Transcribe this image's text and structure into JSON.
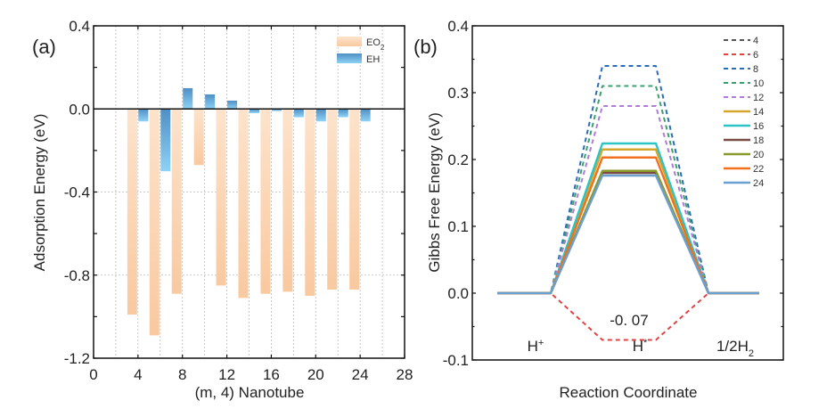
{
  "chart_data": [
    {
      "panel": "(a)",
      "type": "bar",
      "title": "",
      "xlabel": "(m, 4) Nanotube",
      "ylabel": "Adsorption Energy (eV)",
      "xlim": [
        0,
        28
      ],
      "ylim": [
        -1.2,
        0.4
      ],
      "xticks": [
        0,
        4,
        8,
        12,
        16,
        20,
        24,
        28
      ],
      "xtick_labels": [
        "0",
        "4",
        "8",
        "12",
        "16",
        "20",
        "24",
        "28"
      ],
      "yticks": [
        0.4,
        0.0,
        -0.4,
        -0.8,
        -1.2
      ],
      "ytick_labels": [
        "0.4",
        "0.0",
        "-0.4",
        "-0.8",
        "-1.2"
      ],
      "grid": true,
      "legend_position": "top-right",
      "x": [
        4,
        6,
        8,
        10,
        12,
        14,
        16,
        18,
        20,
        22,
        24
      ],
      "series": [
        {
          "name": "EO2",
          "label_main": "EO",
          "label_sub": "2",
          "color": "#f9c9a0",
          "values": [
            -0.99,
            -1.09,
            -0.89,
            -0.27,
            -0.85,
            -0.91,
            -0.89,
            -0.88,
            -0.9,
            -0.87,
            -0.87
          ]
        },
        {
          "name": "EH",
          "label_main": "EH",
          "label_sub": "",
          "color": "#6fb8e8",
          "values": [
            -0.06,
            -0.3,
            0.1,
            0.07,
            0.04,
            -0.02,
            -0.01,
            -0.04,
            -0.06,
            -0.04,
            -0.06
          ]
        }
      ]
    },
    {
      "panel": "(b)",
      "type": "line",
      "title": "",
      "xlabel": "Reaction Coordinate",
      "ylabel": "Gibbs Free Energy (eV)",
      "ylim": [
        -0.1,
        0.4
      ],
      "yticks": [
        0.4,
        0.3,
        0.2,
        0.1,
        0.0,
        -0.1
      ],
      "ytick_labels": [
        "0.4",
        "0.3",
        "0.2",
        "0.1",
        "0.0",
        "-0.1"
      ],
      "x_categories": [
        "H+",
        "H*",
        "1/2H2"
      ],
      "state_labels": [
        {
          "main": "H",
          "sup": "+",
          "sub": ""
        },
        {
          "main": "H",
          "sup": "*",
          "sub": ""
        },
        {
          "main": "1/2H",
          "sup": "",
          "sub": "2"
        }
      ],
      "grid": false,
      "legend_position": "top-right",
      "annotation": "-0. 07",
      "series": [
        {
          "name": "4",
          "style": "dashed",
          "color": "#555555",
          "values": [
            0,
            0.18,
            0
          ]
        },
        {
          "name": "6",
          "style": "dashed",
          "color": "#e04545",
          "values": [
            0,
            -0.07,
            0
          ]
        },
        {
          "name": "8",
          "style": "dashed",
          "color": "#2c6bb5",
          "values": [
            0,
            0.34,
            0
          ]
        },
        {
          "name": "10",
          "style": "dashed",
          "color": "#3aa070",
          "values": [
            0,
            0.31,
            0
          ]
        },
        {
          "name": "12",
          "style": "dashed",
          "color": "#b07ad8",
          "values": [
            0,
            0.28,
            0
          ]
        },
        {
          "name": "14",
          "style": "solid",
          "color": "#d4a72c",
          "values": [
            0,
            0.215,
            0
          ]
        },
        {
          "name": "16",
          "style": "solid",
          "color": "#2cc4c4",
          "values": [
            0,
            0.224,
            0
          ]
        },
        {
          "name": "18",
          "style": "solid",
          "color": "#7a4a44",
          "values": [
            0,
            0.18,
            0
          ]
        },
        {
          "name": "20",
          "style": "solid",
          "color": "#8a9a2a",
          "values": [
            0,
            0.183,
            0
          ]
        },
        {
          "name": "22",
          "style": "solid",
          "color": "#f0701e",
          "values": [
            0,
            0.203,
            0
          ]
        },
        {
          "name": "24",
          "style": "solid",
          "color": "#6b9fcf",
          "values": [
            0,
            0.176,
            0
          ]
        }
      ]
    }
  ]
}
